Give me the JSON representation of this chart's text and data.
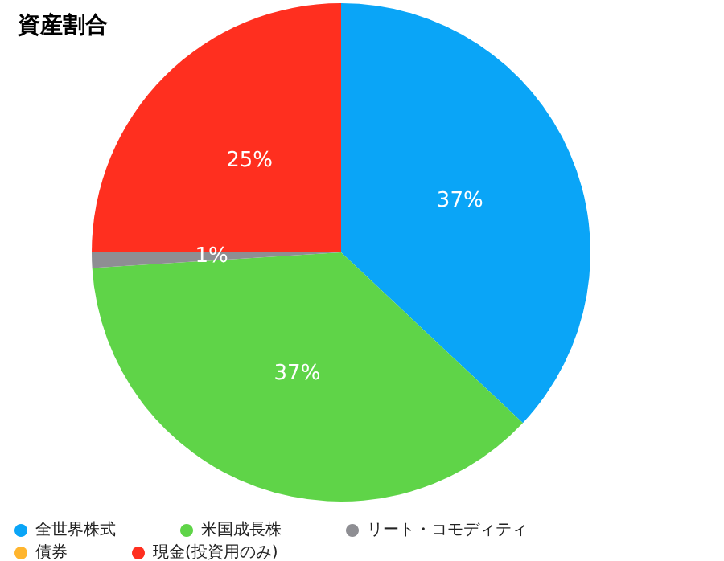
{
  "chart_data": {
    "type": "pie",
    "title": "資産割合",
    "categories": [
      "全世界株式",
      "米国成長株",
      "リート・コモディティ",
      "債券",
      "現金(投資用のみ)"
    ],
    "values": [
      37,
      37,
      1,
      0,
      25
    ],
    "colors": [
      "#0aa5f7",
      "#5fd448",
      "#8e8e93",
      "#ffb52e",
      "#ff2f1f"
    ],
    "value_labels": [
      "37%",
      "37%",
      "1%",
      null,
      "25%"
    ],
    "legend": "bottom"
  }
}
